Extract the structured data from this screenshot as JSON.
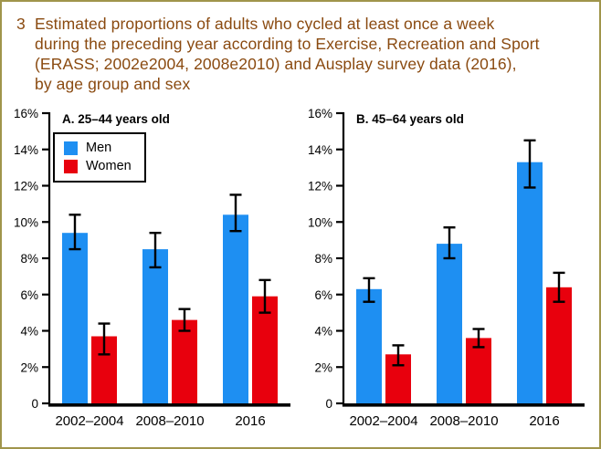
{
  "page": {
    "figure_number": "3",
    "title_lines": [
      "Estimated proportions of adults who cycled at least once a week",
      "during the preceding year according to Exercise, Recreation and Sport",
      "(ERASS; 2002e2004, 2008e2010) and Ausplay survey data (2016),",
      "by age group and sex"
    ]
  },
  "colors": {
    "men": "#1e8ff2",
    "women": "#e8000d",
    "title_text": "#8a4a10",
    "page_border": "#a0954b",
    "axis": "#000000"
  },
  "legend": {
    "items": [
      {
        "label": "Men",
        "color": "#1e8ff2"
      },
      {
        "label": "Women",
        "color": "#e8000d"
      }
    ]
  },
  "chart_data": [
    {
      "type": "bar",
      "title": "A. 25–44 years old",
      "categories": [
        "2002–2004",
        "2008–2010",
        "2016"
      ],
      "series": [
        {
          "name": "Men",
          "color": "#1e8ff2",
          "values": [
            9.4,
            8.5,
            10.4
          ],
          "ci_low": [
            8.5,
            7.5,
            9.5
          ],
          "ci_high": [
            10.4,
            9.4,
            11.5
          ]
        },
        {
          "name": "Women",
          "color": "#e8000d",
          "values": [
            3.7,
            4.6,
            5.9
          ],
          "ci_low": [
            2.7,
            4.0,
            5.0
          ],
          "ci_high": [
            4.4,
            5.2,
            6.8
          ]
        }
      ],
      "xlabel": "",
      "ylabel": "",
      "ylim": [
        0,
        16
      ],
      "ytick_step": 2,
      "ytick_labels": [
        "0",
        "2%",
        "4%",
        "6%",
        "8%",
        "10%",
        "12%",
        "14%",
        "16%"
      ],
      "grid": false,
      "legend_position": "upper-left",
      "error_bars": true
    },
    {
      "type": "bar",
      "title": "B. 45–64 years old",
      "categories": [
        "2002–2004",
        "2008–2010",
        "2016"
      ],
      "series": [
        {
          "name": "Men",
          "color": "#1e8ff2",
          "values": [
            6.3,
            8.8,
            13.3
          ],
          "ci_low": [
            5.6,
            8.0,
            11.9
          ],
          "ci_high": [
            6.9,
            9.7,
            14.5
          ]
        },
        {
          "name": "Women",
          "color": "#e8000d",
          "values": [
            2.7,
            3.6,
            6.4
          ],
          "ci_low": [
            2.1,
            3.1,
            5.6
          ],
          "ci_high": [
            3.2,
            4.1,
            7.2
          ]
        }
      ],
      "xlabel": "",
      "ylabel": "",
      "ylim": [
        0,
        16
      ],
      "ytick_step": 2,
      "ytick_labels": [
        "0",
        "2%",
        "4%",
        "6%",
        "8%",
        "10%",
        "12%",
        "14%",
        "16%"
      ],
      "grid": false,
      "legend_position": "none",
      "error_bars": true
    }
  ]
}
